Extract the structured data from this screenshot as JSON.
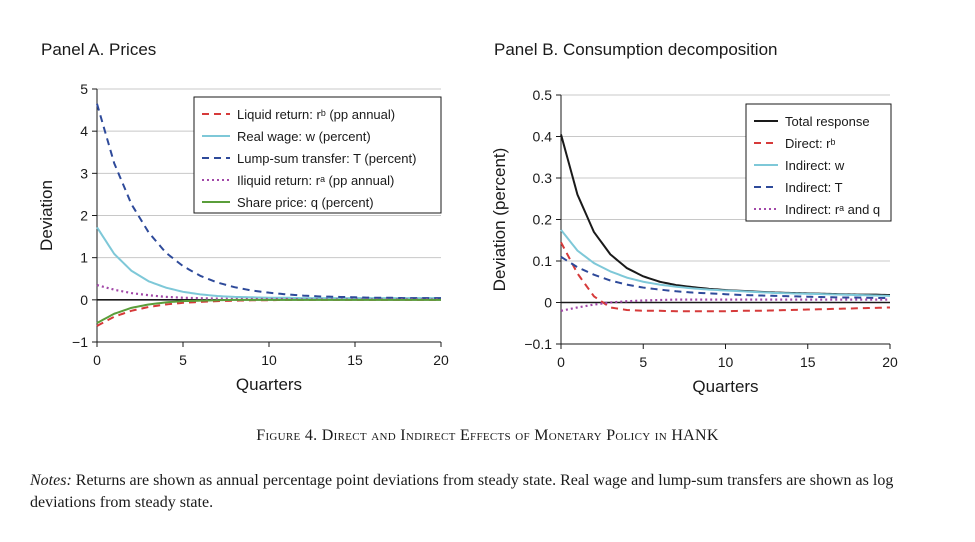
{
  "figure": {
    "caption_prefix": "Figure 4.",
    "caption_text": "Direct and Indirect Effects of Monetary Policy in HANK",
    "notes_label": "Notes:",
    "notes_text": "Returns are shown as annual percentage point deviations from steady state. Real wage and lump-sum transfers are shown as log deviations from steady state."
  },
  "chart_data": [
    {
      "type": "line",
      "title": "Panel A. Prices",
      "xlabel": "Quarters",
      "ylabel": "Deviation",
      "xlim": [
        0,
        20
      ],
      "ylim": [
        -1,
        5
      ],
      "xticks": [
        0,
        5,
        10,
        15,
        20
      ],
      "yticks": [
        -1,
        0,
        1,
        2,
        3,
        4,
        5
      ],
      "ytick_labels": [
        "−1",
        "0",
        "1",
        "2",
        "3",
        "4",
        "5"
      ],
      "grid": "horizontal",
      "legend_position": "top-right",
      "x": [
        0,
        1,
        2,
        3,
        4,
        5,
        6,
        7,
        8,
        9,
        10,
        11,
        12,
        13,
        14,
        15,
        16,
        17,
        18,
        19,
        20
      ],
      "series": [
        {
          "name": "Liquid return: rᵇ (pp annual)",
          "color": "#d63a3a",
          "dash": "dashed",
          "values": [
            -0.62,
            -0.4,
            -0.26,
            -0.17,
            -0.11,
            -0.07,
            -0.05,
            -0.03,
            -0.02,
            -0.01,
            -0.01,
            0,
            0,
            0,
            0,
            0,
            0,
            0,
            0,
            0,
            0
          ]
        },
        {
          "name": "Real wage: w (percent)",
          "color": "#7ec8d8",
          "dash": "solid",
          "values": [
            1.72,
            1.09,
            0.69,
            0.44,
            0.29,
            0.19,
            0.13,
            0.09,
            0.07,
            0.06,
            0.05,
            0.05,
            0.04,
            0.04,
            0.04,
            0.04,
            0.04,
            0.04,
            0.04,
            0.04,
            0.04
          ]
        },
        {
          "name": "Lump-sum transfer: T (percent)",
          "color": "#2e4a9a",
          "dash": "dashed",
          "values": [
            4.65,
            3.24,
            2.27,
            1.6,
            1.12,
            0.8,
            0.57,
            0.41,
            0.3,
            0.22,
            0.17,
            0.13,
            0.1,
            0.08,
            0.07,
            0.06,
            0.05,
            0.05,
            0.04,
            0.04,
            0.04
          ]
        },
        {
          "name": "Iliquid return: rᵃ (pp annual)",
          "color": "#a248a8",
          "dash": "dotted",
          "values": [
            0.35,
            0.24,
            0.16,
            0.11,
            0.07,
            0.05,
            0.04,
            0.03,
            0.02,
            0.02,
            0.02,
            0.02,
            0.01,
            0.01,
            0.01,
            0.01,
            0.01,
            0.01,
            0.01,
            0.01,
            0.01
          ]
        },
        {
          "name": "Share price: q (percent)",
          "color": "#5a9e3a",
          "dash": "solid",
          "values": [
            -0.55,
            -0.33,
            -0.19,
            -0.11,
            -0.06,
            -0.03,
            -0.02,
            -0.01,
            0,
            0,
            0,
            0,
            0,
            0,
            0,
            0,
            0,
            0,
            0,
            0,
            0
          ]
        }
      ]
    },
    {
      "type": "line",
      "title": "Panel B. Consumption decomposition",
      "xlabel": "Quarters",
      "ylabel": "Deviation (percent)",
      "xlim": [
        0,
        20
      ],
      "ylim": [
        -0.1,
        0.5
      ],
      "xticks": [
        0,
        5,
        10,
        15,
        20
      ],
      "yticks": [
        -0.1,
        0,
        0.1,
        0.2,
        0.3,
        0.4,
        0.5
      ],
      "ytick_labels": [
        "−0.1",
        "0",
        "0.1",
        "0.2",
        "0.3",
        "0.4",
        "0.5"
      ],
      "grid": "horizontal",
      "legend_position": "top-right",
      "x": [
        0,
        1,
        2,
        3,
        4,
        5,
        6,
        7,
        8,
        9,
        10,
        11,
        12,
        13,
        14,
        15,
        16,
        17,
        18,
        19,
        20
      ],
      "series": [
        {
          "name": "Total response",
          "color": "#1a1a1a",
          "dash": "solid",
          "values": [
            0.405,
            0.26,
            0.17,
            0.116,
            0.083,
            0.063,
            0.05,
            0.042,
            0.037,
            0.033,
            0.03,
            0.028,
            0.026,
            0.024,
            0.023,
            0.022,
            0.021,
            0.02,
            0.019,
            0.019,
            0.018
          ]
        },
        {
          "name": "Direct: rᵇ",
          "color": "#d63a3a",
          "dash": "dashed",
          "values": [
            0.145,
            0.07,
            0.015,
            -0.012,
            -0.018,
            -0.02,
            -0.02,
            -0.021,
            -0.021,
            -0.021,
            -0.021,
            -0.02,
            -0.02,
            -0.019,
            -0.018,
            -0.017,
            -0.016,
            -0.015,
            -0.014,
            -0.013,
            -0.012
          ]
        },
        {
          "name": "Indirect: w",
          "color": "#7ec8d8",
          "dash": "solid",
          "values": [
            0.175,
            0.125,
            0.095,
            0.075,
            0.06,
            0.05,
            0.043,
            0.038,
            0.034,
            0.031,
            0.029,
            0.027,
            0.025,
            0.023,
            0.022,
            0.021,
            0.02,
            0.019,
            0.018,
            0.017,
            0.016
          ]
        },
        {
          "name": "Indirect: T",
          "color": "#2e4a9a",
          "dash": "dashed",
          "values": [
            0.11,
            0.085,
            0.067,
            0.053,
            0.043,
            0.036,
            0.031,
            0.027,
            0.024,
            0.022,
            0.02,
            0.018,
            0.017,
            0.016,
            0.015,
            0.014,
            0.013,
            0.012,
            0.012,
            0.011,
            0.011
          ]
        },
        {
          "name": "Indirect: rᵃ and q",
          "color": "#a248a8",
          "dash": "dotted",
          "values": [
            -0.02,
            -0.012,
            -0.005,
            0,
            0.003,
            0.005,
            0.006,
            0.007,
            0.007,
            0.007,
            0.007,
            0.007,
            0.007,
            0.007,
            0.007,
            0.007,
            0.007,
            0.007,
            0.007,
            0.007,
            0.007
          ]
        }
      ]
    }
  ]
}
